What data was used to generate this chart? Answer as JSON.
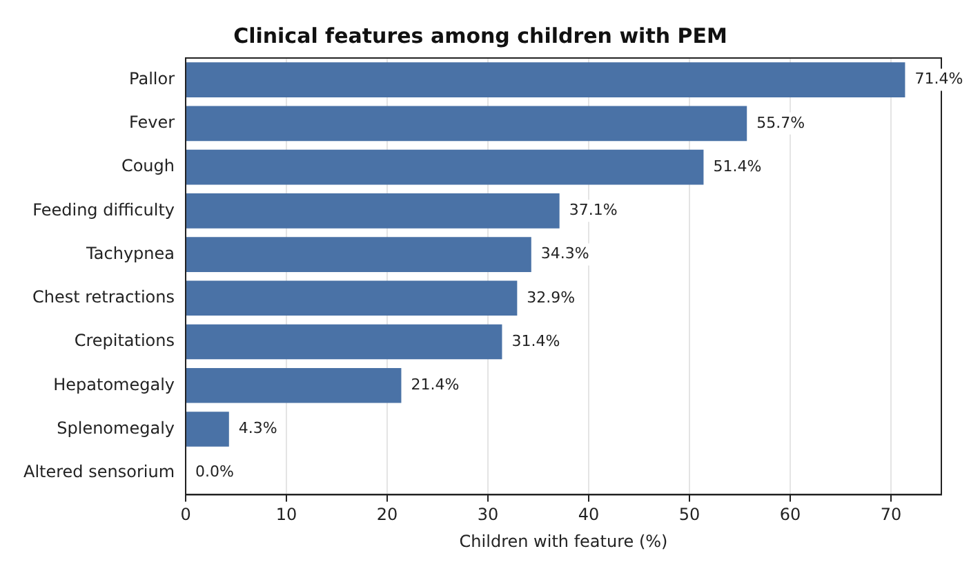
{
  "chart_data": {
    "type": "bar",
    "orientation": "horizontal",
    "title": "Clinical features among children with PEM",
    "xlabel": "Children with feature (%)",
    "categories": [
      "Pallor",
      "Fever",
      "Cough",
      "Feeding difficulty",
      "Tachypnea",
      "Chest retractions",
      "Crepitations",
      "Hepatomegaly",
      "Splenomegaly",
      "Altered sensorium"
    ],
    "values": [
      71.4,
      55.7,
      51.4,
      37.1,
      34.3,
      32.9,
      31.4,
      21.4,
      4.3,
      0.0
    ],
    "value_labels": [
      "71.4%",
      "55.7%",
      "51.4%",
      "37.1%",
      "34.3%",
      "32.9%",
      "31.4%",
      "21.4%",
      "4.3%",
      "0.0%"
    ],
    "color": "#4a72a6",
    "xlim": [
      0,
      75
    ],
    "xticks": [
      0,
      10,
      20,
      30,
      40,
      50,
      60,
      70
    ],
    "grid": "x",
    "legend": false
  }
}
